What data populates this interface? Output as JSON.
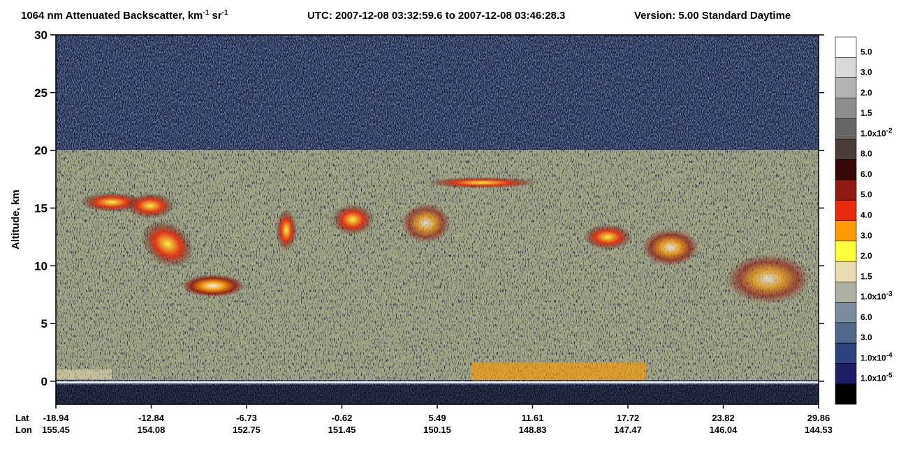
{
  "chart_data": {
    "type": "heatmap",
    "title": {
      "main": "1064 nm Attenuated Backscatter, km",
      "unit1_exp": "-1",
      "unit2": " sr",
      "unit2_exp": "-1"
    },
    "subtitle": "UTC:  2007-12-08 03:32:59.6  to  2007-12-08 03:46:28.3",
    "version": "Version: 5.00  Standard  Daytime",
    "ylabel": "Altitude, km",
    "ylim": [
      -2,
      30
    ],
    "yticks": [
      0,
      5,
      10,
      15,
      20,
      25,
      30
    ],
    "x_rows": [
      {
        "name": "Lat",
        "values": [
          -18.94,
          -12.84,
          -6.73,
          -0.62,
          5.49,
          11.61,
          17.72,
          23.82,
          29.86
        ]
      },
      {
        "name": "Lon",
        "values": [
          155.45,
          154.08,
          152.75,
          151.45,
          150.15,
          148.83,
          147.47,
          146.04,
          144.53
        ]
      }
    ],
    "colorbar": {
      "colors": [
        "#ffffff",
        "#d9d9d9",
        "#b3b3b3",
        "#8c8c8c",
        "#666666",
        "#4a3d39",
        "#380808",
        "#8e1a12",
        "#ea2a0c",
        "#ff9a00",
        "#ffff3c",
        "#e9dcb0",
        "#aeb0a2",
        "#7a8c9e",
        "#52698c",
        "#2e427e",
        "#1e1e66",
        "#000000"
      ],
      "labels": [
        {
          "text": "5.0"
        },
        {
          "text": "3.0"
        },
        {
          "text": "2.0"
        },
        {
          "text": "1.5"
        },
        {
          "text": "1.0x10",
          "exp": "-2"
        },
        {
          "text": "8.0"
        },
        {
          "text": "6.0"
        },
        {
          "text": "5.0"
        },
        {
          "text": "4.0"
        },
        {
          "text": "3.0"
        },
        {
          "text": "2.0"
        },
        {
          "text": "1.5"
        },
        {
          "text": "1.0x10",
          "exp": "-3"
        },
        {
          "text": "6.0"
        },
        {
          "text": "3.0"
        },
        {
          "text": "1.0x10",
          "exp": "-4"
        },
        {
          "text": "1.0x10",
          "exp": "-5"
        }
      ]
    }
  }
}
